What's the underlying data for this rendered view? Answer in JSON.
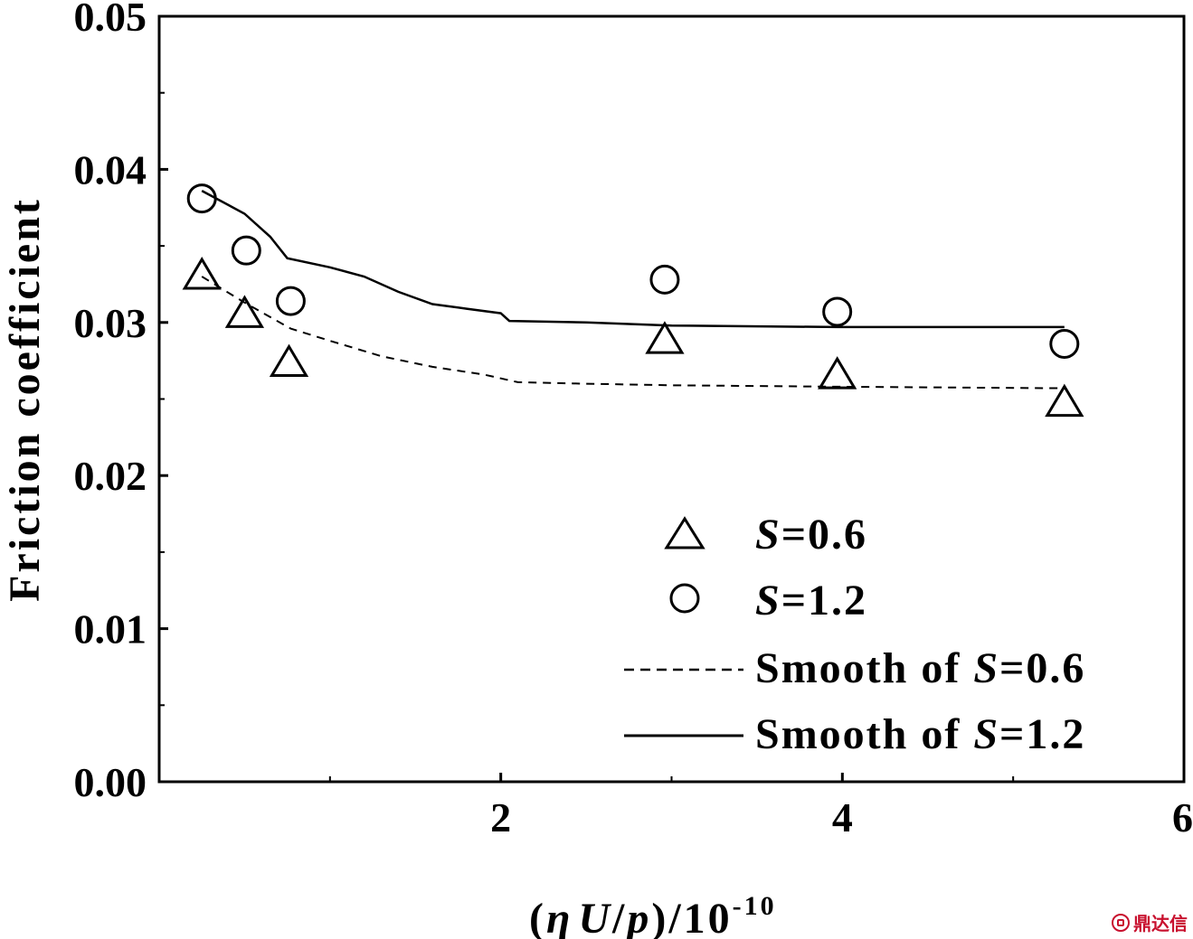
{
  "chart_data": {
    "type": "scatter",
    "xlabel": "(ηU/p)/10",
    "xlabel_parts": {
      "open": "(",
      "eta": "η",
      "U": "U",
      "slash": "/",
      "p": "p",
      "close": ")/10",
      "exp": "-10"
    },
    "ylabel": "Friction coefficient",
    "xlim": [
      0,
      6
    ],
    "ylim": [
      0,
      0.05
    ],
    "x_ticks": [
      2,
      4,
      6
    ],
    "x_tick_labels": [
      "2",
      "4",
      "6"
    ],
    "x_minor_ticks": [
      1,
      3,
      5
    ],
    "y_ticks": [
      0,
      0.01,
      0.02,
      0.03,
      0.04,
      0.05
    ],
    "y_tick_labels": [
      "0.00",
      "0.01",
      "0.02",
      "0.03",
      "0.04",
      "0.05"
    ],
    "y_minor_ticks": [
      0.005,
      0.015,
      0.025,
      0.035,
      0.045
    ],
    "grid": false,
    "legend_position": "bottom-right",
    "series": [
      {
        "name": "S=0.6",
        "name_parts": {
          "italic": "S",
          "rest": "=0.6"
        },
        "kind": "markers",
        "marker": "triangle",
        "points": [
          [
            0.25,
            0.033
          ],
          [
            0.5,
            0.0305
          ],
          [
            0.76,
            0.0273
          ],
          [
            2.96,
            0.0288
          ],
          [
            3.97,
            0.0265
          ],
          [
            5.3,
            0.0247
          ]
        ]
      },
      {
        "name": "S=1.2",
        "name_parts": {
          "italic": "S",
          "rest": "=1.2"
        },
        "kind": "markers",
        "marker": "circle",
        "points": [
          [
            0.25,
            0.0381
          ],
          [
            0.51,
            0.0347
          ],
          [
            0.77,
            0.0314
          ],
          [
            2.96,
            0.0328
          ],
          [
            3.97,
            0.0307
          ],
          [
            5.3,
            0.0286
          ]
        ]
      },
      {
        "name": "Smooth of S=0.6",
        "name_parts": {
          "prefix": "Smooth of ",
          "italic": "S",
          "rest": "=0.6"
        },
        "kind": "line",
        "style": "dashed",
        "points": [
          [
            0.25,
            0.033
          ],
          [
            0.5,
            0.0313
          ],
          [
            0.77,
            0.0296
          ],
          [
            1.0,
            0.0288
          ],
          [
            1.3,
            0.0278
          ],
          [
            1.6,
            0.0271
          ],
          [
            1.9,
            0.0266
          ],
          [
            2.1,
            0.0261
          ],
          [
            2.5,
            0.026
          ],
          [
            3.0,
            0.0259
          ],
          [
            3.97,
            0.0258
          ],
          [
            5.3,
            0.0257
          ]
        ]
      },
      {
        "name": "Smooth of S=1.2",
        "name_parts": {
          "prefix": "Smooth of ",
          "italic": "S",
          "rest": "=1.2"
        },
        "kind": "line",
        "style": "solid",
        "points": [
          [
            0.25,
            0.0386
          ],
          [
            0.5,
            0.0371
          ],
          [
            0.65,
            0.0356
          ],
          [
            0.75,
            0.0342
          ],
          [
            1.0,
            0.0336
          ],
          [
            1.2,
            0.033
          ],
          [
            1.4,
            0.032
          ],
          [
            1.6,
            0.0312
          ],
          [
            1.8,
            0.0309
          ],
          [
            2.0,
            0.0306
          ],
          [
            2.05,
            0.0301
          ],
          [
            2.5,
            0.03
          ],
          [
            3.0,
            0.0298
          ],
          [
            3.97,
            0.0297
          ],
          [
            5.3,
            0.0297
          ]
        ]
      }
    ]
  },
  "watermark": {
    "text": "鼎达信",
    "icon": "logo-icon"
  }
}
